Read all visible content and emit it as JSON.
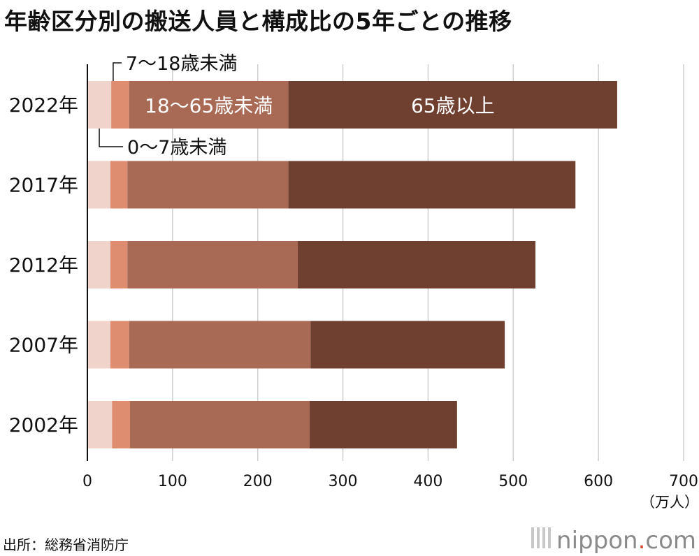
{
  "chart_data": {
    "type": "bar",
    "orientation": "horizontal",
    "stacked": true,
    "title": "年齢区分別の搬送人員と構成比の5年ごとの推移",
    "categories": [
      "2022年",
      "2017年",
      "2012年",
      "2007年",
      "2002年"
    ],
    "series": [
      {
        "name": "0〜7歳未満",
        "color": "#f0d3cb",
        "values": [
          28,
          27,
          27,
          27,
          29
        ]
      },
      {
        "name": "7〜18歳未満",
        "color": "#df8d70",
        "values": [
          21,
          20,
          20,
          22,
          21
        ]
      },
      {
        "name": "18〜65歳未満",
        "color": "#a86a55",
        "values": [
          187,
          189,
          200,
          213,
          211
        ]
      },
      {
        "name": "65歳以上",
        "color": "#6f3f30",
        "values": [
          386,
          337,
          279,
          228,
          173
        ]
      }
    ],
    "xlim": [
      0,
      700
    ],
    "xticks": [
      "0",
      "100",
      "200",
      "300",
      "400",
      "500",
      "600",
      "700"
    ],
    "unit_label": "（万人）",
    "grid": true
  },
  "annotation_label_7_18": "7〜18歳未満",
  "annotation_label_0_7": "0〜7歳未満",
  "source": "出所：総務省消防庁",
  "logo": {
    "name": "nippon",
    "dot": ".",
    "suffix": "com"
  }
}
